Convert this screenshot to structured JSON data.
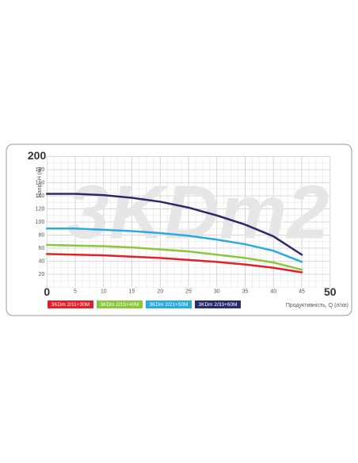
{
  "chart_data": {
    "type": "line",
    "watermark": "3KDm2",
    "y_label": "Напір, Н (м)",
    "x_label": "Продуктивність, Q (л/хв)",
    "x": [
      0,
      5,
      10,
      15,
      20,
      25,
      30,
      35,
      40,
      45
    ],
    "xlim": [
      0,
      50
    ],
    "xticks": [
      0,
      5,
      10,
      15,
      20,
      25,
      30,
      35,
      40,
      45,
      50
    ],
    "ylim": [
      0,
      200
    ],
    "yticks": [
      20,
      40,
      60,
      80,
      100,
      120,
      140,
      160,
      180,
      200
    ],
    "grid": true,
    "series": [
      {
        "name": "3KDm 2/11+30M",
        "color": "#e3202a",
        "values": [
          51,
          50,
          49,
          47,
          45,
          42,
          39,
          35,
          30,
          23
        ]
      },
      {
        "name": "3KDm 2/15+40M",
        "color": "#8cc63f",
        "values": [
          65,
          64,
          63,
          61,
          58,
          55,
          50,
          45,
          38,
          27
        ]
      },
      {
        "name": "3KDm 2/21+50M",
        "color": "#29abe2",
        "values": [
          90,
          90,
          88,
          86,
          83,
          79,
          73,
          66,
          56,
          39
        ]
      },
      {
        "name": "3KDm 2/33+60M",
        "color": "#2b2a6b",
        "values": [
          143,
          143,
          141,
          137,
          131,
          122,
          110,
          96,
          78,
          50
        ]
      }
    ]
  }
}
